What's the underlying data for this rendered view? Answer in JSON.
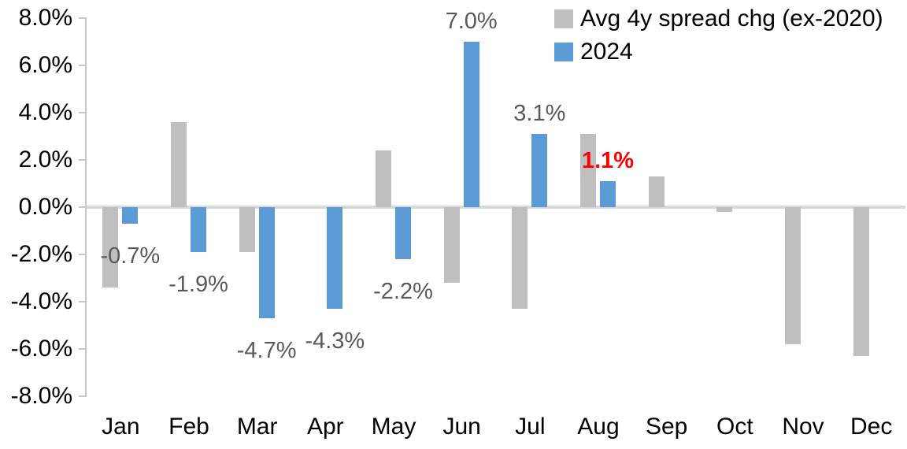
{
  "chart_data": {
    "type": "bar",
    "title": "",
    "categories": [
      "Jan",
      "Feb",
      "Mar",
      "Apr",
      "May",
      "Jun",
      "Jul",
      "Aug",
      "Sep",
      "Oct",
      "Nov",
      "Dec"
    ],
    "series": [
      {
        "name": "Avg 4y spread chg (ex-2020)",
        "color": "#bfbfbf",
        "values": [
          -3.4,
          3.6,
          -1.9,
          0.0,
          2.4,
          -3.2,
          -4.3,
          3.1,
          1.3,
          -0.2,
          -5.8,
          -6.3
        ]
      },
      {
        "name": "2024",
        "color": "#5b9bd5",
        "values": [
          -0.7,
          -1.9,
          -4.7,
          -4.3,
          -2.2,
          7.0,
          3.1,
          1.1,
          null,
          null,
          null,
          null
        ]
      }
    ],
    "data_labels": [
      {
        "month": "Jan",
        "series": "2024",
        "text": "-0.7%",
        "color": "#595959",
        "bold": false
      },
      {
        "month": "Feb",
        "series": "2024",
        "text": "-1.9%",
        "color": "#595959",
        "bold": false
      },
      {
        "month": "Mar",
        "series": "2024",
        "text": "-4.7%",
        "color": "#595959",
        "bold": false
      },
      {
        "month": "Apr",
        "series": "2024",
        "text": "-4.3%",
        "color": "#595959",
        "bold": false
      },
      {
        "month": "May",
        "series": "2024",
        "text": "-2.2%",
        "color": "#595959",
        "bold": false
      },
      {
        "month": "Jun",
        "series": "2024",
        "text": "7.0%",
        "color": "#595959",
        "bold": false
      },
      {
        "month": "Jul",
        "series": "2024",
        "text": "3.1%",
        "color": "#595959",
        "bold": false
      },
      {
        "month": "Aug",
        "series": "2024",
        "text": "1.1%",
        "color": "#ff0000",
        "bold": true
      }
    ],
    "y_axis": {
      "min": -8,
      "max": 8,
      "step": 2,
      "format": "percent",
      "tick_labels": [
        "8.0%",
        "6.0%",
        "4.0%",
        "2.0%",
        "0.0%",
        "-2.0%",
        "-4.0%",
        "-6.0%",
        "-8.0%"
      ]
    },
    "x_axis": {
      "label": ""
    },
    "ylabel": "",
    "xlabel": "",
    "grid": false,
    "legend": {
      "position": "top-right",
      "entries": [
        {
          "label": "Avg 4y spread chg (ex-2020)",
          "color": "#bfbfbf"
        },
        {
          "label": "2024",
          "color": "#5b9bd5"
        }
      ]
    }
  },
  "colors": {
    "bar_gray": "#bfbfbf",
    "bar_blue": "#5b9bd5",
    "data_label": "#595959",
    "highlight_label": "#ff0000",
    "zero_line": "#d9d9d9",
    "axis_line": "#c6c6c6",
    "axis_text": "#000000",
    "background": "#ffffff"
  }
}
